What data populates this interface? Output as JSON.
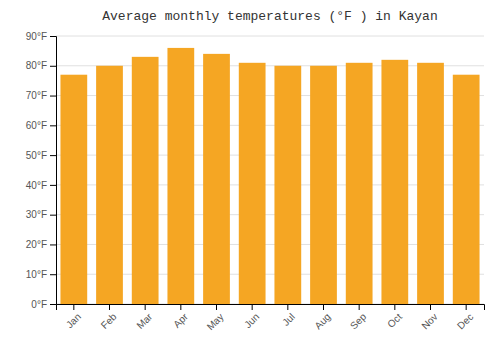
{
  "chart_data": {
    "type": "bar",
    "title": "Average monthly temperatures (°F ) in Kayan",
    "categories": [
      "Jan",
      "Feb",
      "Mar",
      "Apr",
      "May",
      "Jun",
      "Jul",
      "Aug",
      "Sep",
      "Oct",
      "Nov",
      "Dec"
    ],
    "values": [
      77,
      80,
      83,
      86,
      84,
      81,
      80,
      80,
      81,
      82,
      81,
      77
    ],
    "color": "#F5A623",
    "ylim": [
      0,
      90
    ],
    "yticks": [
      {
        "value": 0,
        "label": "0°F"
      },
      {
        "value": 10,
        "label": "10°F"
      },
      {
        "value": 20,
        "label": "20°F"
      },
      {
        "value": 30,
        "label": "30°F"
      },
      {
        "value": 40,
        "label": "40°F"
      },
      {
        "value": 50,
        "label": "50°F"
      },
      {
        "value": 60,
        "label": "60°F"
      },
      {
        "value": 70,
        "label": "70°F"
      },
      {
        "value": 80,
        "label": "80°F"
      },
      {
        "value": 90,
        "label": "90°F"
      }
    ],
    "grid": true
  }
}
